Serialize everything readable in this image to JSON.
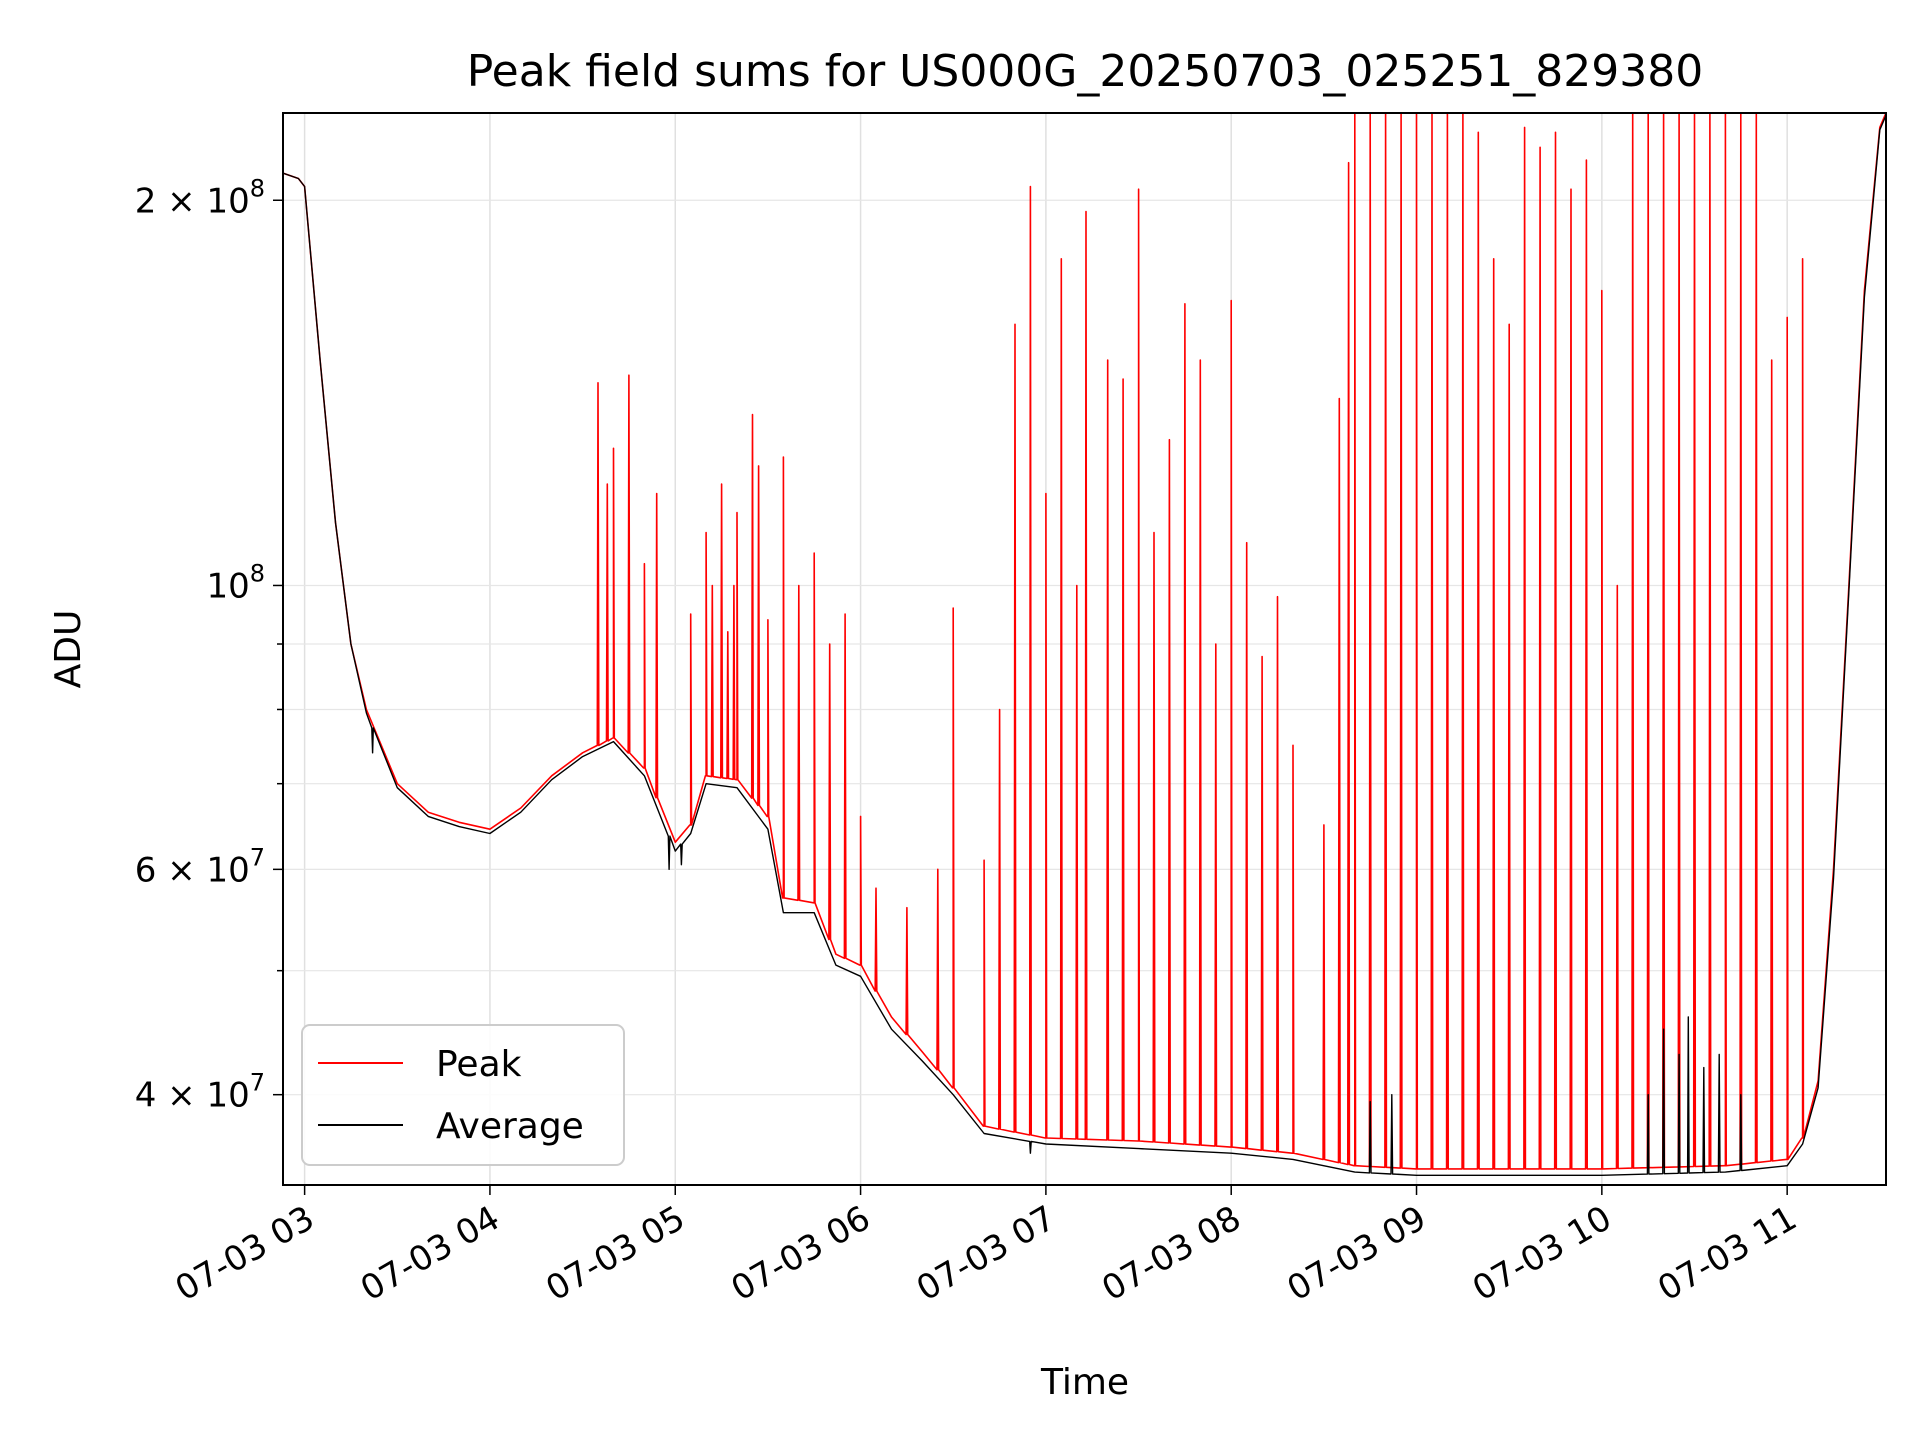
{
  "chart_data": {
    "type": "line",
    "title": "Peak field sums for US000G_20250703_025251_829380",
    "xlabel": "Time",
    "ylabel": "ADU",
    "y_scale": "log",
    "ylim": [
      34000000,
      234000000
    ],
    "xlim": [
      "2025-07-03 02:53",
      "2025-07-03 11:32"
    ],
    "grid": true,
    "legend_position": "lower-left",
    "x_ticks": [
      "07-03 03",
      "07-03 04",
      "07-03 05",
      "07-03 06",
      "07-03 07",
      "07-03 08",
      "07-03 09",
      "07-03 10",
      "07-03 11"
    ],
    "y_ticks": [
      {
        "value": 200000000,
        "mantissa": "2",
        "exp": "8"
      },
      {
        "value": 100000000,
        "mantissa": "",
        "exp": "8"
      },
      {
        "value": 60000000,
        "mantissa": "6",
        "exp": "7"
      },
      {
        "value": 40000000,
        "mantissa": "4",
        "exp": "7"
      }
    ],
    "series": [
      {
        "name": "Peak",
        "color": "#ff0000",
        "baseline": [
          [
            "2025-07-03 02:53",
            210000000
          ],
          [
            "2025-07-03 02:58",
            208000000
          ],
          [
            "2025-07-03 03:00",
            205000000
          ],
          [
            "2025-07-03 03:05",
            150000000
          ],
          [
            "2025-07-03 03:10",
            112000000
          ],
          [
            "2025-07-03 03:15",
            90000000
          ],
          [
            "2025-07-03 03:20",
            80000000
          ],
          [
            "2025-07-03 03:30",
            70000000
          ],
          [
            "2025-07-03 03:40",
            66500000
          ],
          [
            "2025-07-03 03:50",
            65300000
          ],
          [
            "2025-07-03 04:00",
            64500000
          ],
          [
            "2025-07-03 04:10",
            67000000
          ],
          [
            "2025-07-03 04:20",
            71000000
          ],
          [
            "2025-07-03 04:30",
            74000000
          ],
          [
            "2025-07-03 04:40",
            76000000
          ],
          [
            "2025-07-03 04:50",
            72000000
          ],
          [
            "2025-07-03 05:00",
            63000000
          ],
          [
            "2025-07-03 05:05",
            65000000
          ],
          [
            "2025-07-03 05:10",
            71000000
          ],
          [
            "2025-07-03 05:20",
            70500000
          ],
          [
            "2025-07-03 05:30",
            66000000
          ],
          [
            "2025-07-03 05:35",
            57000000
          ],
          [
            "2025-07-03 05:45",
            56500000
          ],
          [
            "2025-07-03 05:52",
            51500000
          ],
          [
            "2025-07-03 06:00",
            50500000
          ],
          [
            "2025-07-03 06:10",
            46000000
          ],
          [
            "2025-07-03 06:20",
            43200000
          ],
          [
            "2025-07-03 06:30",
            40500000
          ],
          [
            "2025-07-03 06:40",
            37800000
          ],
          [
            "2025-07-03 07:00",
            37000000
          ],
          [
            "2025-07-03 07:30",
            36800000
          ],
          [
            "2025-07-03 08:00",
            36400000
          ],
          [
            "2025-07-03 08:20",
            36000000
          ],
          [
            "2025-07-03 08:40",
            35200000
          ],
          [
            "2025-07-03 09:00",
            35000000
          ],
          [
            "2025-07-03 10:00",
            35000000
          ],
          [
            "2025-07-03 10:40",
            35200000
          ],
          [
            "2025-07-03 11:00",
            35600000
          ],
          [
            "2025-07-03 11:05",
            37000000
          ],
          [
            "2025-07-03 11:10",
            41000000
          ],
          [
            "2025-07-03 11:15",
            60000000
          ],
          [
            "2025-07-03 11:20",
            100000000
          ],
          [
            "2025-07-03 11:25",
            170000000
          ],
          [
            "2025-07-03 11:30",
            228000000
          ],
          [
            "2025-07-03 11:32",
            234000000
          ]
        ],
        "spikes": [
          [
            "2025-07-03 04:35",
            144000000
          ],
          [
            "2025-07-03 04:38",
            120000000
          ],
          [
            "2025-07-03 04:40",
            128000000
          ],
          [
            "2025-07-03 04:45",
            146000000
          ],
          [
            "2025-07-03 04:50",
            104000000
          ],
          [
            "2025-07-03 04:54",
            118000000
          ],
          [
            "2025-07-03 05:05",
            95000000
          ],
          [
            "2025-07-03 05:10",
            110000000
          ],
          [
            "2025-07-03 05:12",
            100000000
          ],
          [
            "2025-07-03 05:15",
            120000000
          ],
          [
            "2025-07-03 05:17",
            92000000
          ],
          [
            "2025-07-03 05:19",
            100000000
          ],
          [
            "2025-07-03 05:20",
            114000000
          ],
          [
            "2025-07-03 05:25",
            136000000
          ],
          [
            "2025-07-03 05:27",
            124000000
          ],
          [
            "2025-07-03 05:30",
            94000000
          ],
          [
            "2025-07-03 05:35",
            126000000
          ],
          [
            "2025-07-03 05:40",
            100000000
          ],
          [
            "2025-07-03 05:45",
            106000000
          ],
          [
            "2025-07-03 05:50",
            90000000
          ],
          [
            "2025-07-03 05:55",
            95000000
          ],
          [
            "2025-07-03 06:00",
            66000000
          ],
          [
            "2025-07-03 06:05",
            58000000
          ],
          [
            "2025-07-03 06:15",
            56000000
          ],
          [
            "2025-07-03 06:25",
            60000000
          ],
          [
            "2025-07-03 06:30",
            96000000
          ],
          [
            "2025-07-03 06:40",
            61000000
          ],
          [
            "2025-07-03 06:45",
            80000000
          ],
          [
            "2025-07-03 06:50",
            160000000
          ],
          [
            "2025-07-03 06:55",
            205000000
          ],
          [
            "2025-07-03 07:00",
            118000000
          ],
          [
            "2025-07-03 07:05",
            180000000
          ],
          [
            "2025-07-03 07:10",
            100000000
          ],
          [
            "2025-07-03 07:13",
            196000000
          ],
          [
            "2025-07-03 07:20",
            150000000
          ],
          [
            "2025-07-03 07:25",
            145000000
          ],
          [
            "2025-07-03 07:30",
            204000000
          ],
          [
            "2025-07-03 07:35",
            110000000
          ],
          [
            "2025-07-03 07:40",
            130000000
          ],
          [
            "2025-07-03 07:45",
            166000000
          ],
          [
            "2025-07-03 07:50",
            150000000
          ],
          [
            "2025-07-03 07:55",
            90000000
          ],
          [
            "2025-07-03 08:00",
            167000000
          ],
          [
            "2025-07-03 08:05",
            108000000
          ],
          [
            "2025-07-03 08:10",
            88000000
          ],
          [
            "2025-07-03 08:15",
            98000000
          ],
          [
            "2025-07-03 08:20",
            75000000
          ],
          [
            "2025-07-03 08:30",
            65000000
          ],
          [
            "2025-07-03 08:35",
            140000000
          ],
          [
            "2025-07-03 08:38",
            214000000
          ],
          [
            "2025-07-03 08:40",
            234000000
          ],
          [
            "2025-07-03 08:45",
            234000000
          ],
          [
            "2025-07-03 08:50",
            234000000
          ],
          [
            "2025-07-03 08:55",
            234000000
          ],
          [
            "2025-07-03 09:00",
            234000000
          ],
          [
            "2025-07-03 09:05",
            234000000
          ],
          [
            "2025-07-03 09:10",
            234000000
          ],
          [
            "2025-07-03 09:15",
            234000000
          ],
          [
            "2025-07-03 09:20",
            226000000
          ],
          [
            "2025-07-03 09:25",
            180000000
          ],
          [
            "2025-07-03 09:30",
            160000000
          ],
          [
            "2025-07-03 09:35",
            228000000
          ],
          [
            "2025-07-03 09:40",
            220000000
          ],
          [
            "2025-07-03 09:45",
            226000000
          ],
          [
            "2025-07-03 09:50",
            204000000
          ],
          [
            "2025-07-03 09:55",
            215000000
          ],
          [
            "2025-07-03 10:00",
            170000000
          ],
          [
            "2025-07-03 10:05",
            100000000
          ],
          [
            "2025-07-03 10:10",
            234000000
          ],
          [
            "2025-07-03 10:15",
            234000000
          ],
          [
            "2025-07-03 10:20",
            234000000
          ],
          [
            "2025-07-03 10:25",
            234000000
          ],
          [
            "2025-07-03 10:30",
            234000000
          ],
          [
            "2025-07-03 10:35",
            234000000
          ],
          [
            "2025-07-03 10:40",
            234000000
          ],
          [
            "2025-07-03 10:45",
            234000000
          ],
          [
            "2025-07-03 10:50",
            234000000
          ],
          [
            "2025-07-03 10:55",
            150000000
          ],
          [
            "2025-07-03 11:00",
            162000000
          ],
          [
            "2025-07-03 11:05",
            180000000
          ]
        ]
      },
      {
        "name": "Average",
        "color": "#000000",
        "baseline": [
          [
            "2025-07-03 02:53",
            210000000
          ],
          [
            "2025-07-03 02:58",
            208000000
          ],
          [
            "2025-07-03 03:00",
            205000000
          ],
          [
            "2025-07-03 03:05",
            150000000
          ],
          [
            "2025-07-03 03:10",
            112000000
          ],
          [
            "2025-07-03 03:15",
            90000000
          ],
          [
            "2025-07-03 03:20",
            79500000
          ],
          [
            "2025-07-03 03:30",
            69500000
          ],
          [
            "2025-07-03 03:40",
            66000000
          ],
          [
            "2025-07-03 03:50",
            64800000
          ],
          [
            "2025-07-03 04:00",
            64000000
          ],
          [
            "2025-07-03 04:10",
            66500000
          ],
          [
            "2025-07-03 04:20",
            70500000
          ],
          [
            "2025-07-03 04:30",
            73500000
          ],
          [
            "2025-07-03 04:40",
            75500000
          ],
          [
            "2025-07-03 04:50",
            71000000
          ],
          [
            "2025-07-03 05:00",
            62000000
          ],
          [
            "2025-07-03 05:05",
            64000000
          ],
          [
            "2025-07-03 05:10",
            70000000
          ],
          [
            "2025-07-03 05:20",
            69500000
          ],
          [
            "2025-07-03 05:30",
            64500000
          ],
          [
            "2025-07-03 05:35",
            55500000
          ],
          [
            "2025-07-03 05:45",
            55500000
          ],
          [
            "2025-07-03 05:52",
            50500000
          ],
          [
            "2025-07-03 06:00",
            49500000
          ],
          [
            "2025-07-03 06:10",
            45000000
          ],
          [
            "2025-07-03 06:20",
            42500000
          ],
          [
            "2025-07-03 06:30",
            40000000
          ],
          [
            "2025-07-03 06:40",
            37300000
          ],
          [
            "2025-07-03 07:00",
            36600000
          ],
          [
            "2025-07-03 07:30",
            36300000
          ],
          [
            "2025-07-03 08:00",
            36000000
          ],
          [
            "2025-07-03 08:20",
            35600000
          ],
          [
            "2025-07-03 08:40",
            34800000
          ],
          [
            "2025-07-03 09:00",
            34600000
          ],
          [
            "2025-07-03 10:00",
            34600000
          ],
          [
            "2025-07-03 10:40",
            34800000
          ],
          [
            "2025-07-03 11:00",
            35200000
          ],
          [
            "2025-07-03 11:05",
            36600000
          ],
          [
            "2025-07-03 11:10",
            40500000
          ],
          [
            "2025-07-03 11:15",
            59000000
          ],
          [
            "2025-07-03 11:20",
            99000000
          ],
          [
            "2025-07-03 11:25",
            168000000
          ],
          [
            "2025-07-03 11:30",
            227000000
          ],
          [
            "2025-07-03 11:32",
            233000000
          ]
        ],
        "spikes": [
          [
            "2025-07-03 03:22",
            74000000
          ],
          [
            "2025-07-03 04:58",
            60000000
          ],
          [
            "2025-07-03 05:02",
            60500000
          ],
          [
            "2025-07-03 06:55",
            36000000
          ],
          [
            "2025-07-03 08:45",
            39500000
          ],
          [
            "2025-07-03 08:52",
            40000000
          ],
          [
            "2025-07-03 10:15",
            40000000
          ],
          [
            "2025-07-03 10:20",
            45000000
          ],
          [
            "2025-07-03 10:25",
            43000000
          ],
          [
            "2025-07-03 10:28",
            46000000
          ],
          [
            "2025-07-03 10:33",
            42000000
          ],
          [
            "2025-07-03 10:38",
            43000000
          ],
          [
            "2025-07-03 10:45",
            40000000
          ]
        ]
      }
    ]
  }
}
